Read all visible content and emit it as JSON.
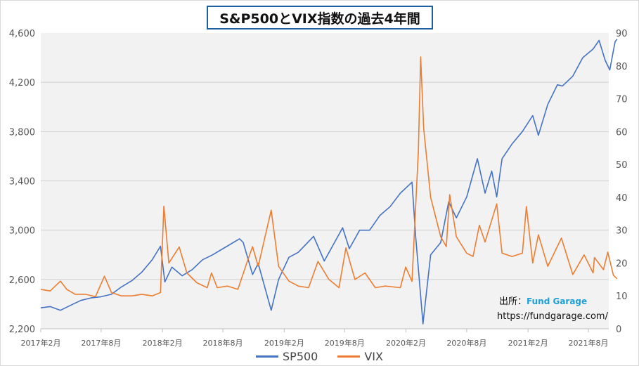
{
  "title": "S&P500とVIX指数の過去4年間",
  "source": {
    "label": "出所：",
    "brand": "Fund Garage",
    "url": "https://fundgarage.com/"
  },
  "colors": {
    "sp500": "#4472c4",
    "vix": "#ed7d31",
    "plot_bg": "#f2f2f2",
    "grid": "#d0d0d0"
  },
  "chart_data": {
    "type": "line",
    "title": "S&P500とVIX指数の過去4年間",
    "x_ticks": [
      "2017年2月",
      "2017年8月",
      "2018年2月",
      "2018年8月",
      "2019年2月",
      "2019年8月",
      "2020年2月",
      "2020年8月",
      "2021年2月",
      "2021年8月"
    ],
    "x_range": [
      "2017-02",
      "2021-10"
    ],
    "y_left": {
      "ticks": [
        "4,600",
        "4,200",
        "3,800",
        "3,400",
        "3,000",
        "2,600",
        "2,200"
      ],
      "range": [
        2200,
        4600
      ]
    },
    "y_right": {
      "ticks": [
        "90",
        "80",
        "70",
        "60",
        "50",
        "40",
        "30",
        "20",
        "10",
        "0"
      ],
      "range": [
        0,
        90
      ]
    },
    "grid": true,
    "legend_position": "bottom",
    "series": [
      {
        "name": "SP500",
        "axis": "left",
        "points": [
          [
            "2017-02-01",
            2370
          ],
          [
            "2017-03-01",
            2380
          ],
          [
            "2017-04-01",
            2350
          ],
          [
            "2017-05-01",
            2390
          ],
          [
            "2017-06-01",
            2430
          ],
          [
            "2017-07-01",
            2450
          ],
          [
            "2017-08-01",
            2460
          ],
          [
            "2017-09-01",
            2480
          ],
          [
            "2017-10-01",
            2540
          ],
          [
            "2017-11-01",
            2590
          ],
          [
            "2017-12-01",
            2660
          ],
          [
            "2018-01-01",
            2760
          ],
          [
            "2018-01-26",
            2870
          ],
          [
            "2018-02-08",
            2580
          ],
          [
            "2018-03-01",
            2700
          ],
          [
            "2018-04-01",
            2630
          ],
          [
            "2018-05-01",
            2680
          ],
          [
            "2018-06-01",
            2760
          ],
          [
            "2018-07-01",
            2800
          ],
          [
            "2018-08-01",
            2850
          ],
          [
            "2018-09-20",
            2930
          ],
          [
            "2018-10-01",
            2900
          ],
          [
            "2018-10-29",
            2640
          ],
          [
            "2018-11-15",
            2730
          ],
          [
            "2018-12-24",
            2350
          ],
          [
            "2019-01-15",
            2600
          ],
          [
            "2019-02-15",
            2780
          ],
          [
            "2019-03-15",
            2820
          ],
          [
            "2019-04-30",
            2950
          ],
          [
            "2019-06-01",
            2750
          ],
          [
            "2019-07-26",
            3020
          ],
          [
            "2019-08-15",
            2850
          ],
          [
            "2019-09-15",
            3000
          ],
          [
            "2019-10-15",
            3000
          ],
          [
            "2019-11-15",
            3120
          ],
          [
            "2019-12-15",
            3190
          ],
          [
            "2020-01-15",
            3300
          ],
          [
            "2020-02-19",
            3390
          ],
          [
            "2020-03-01",
            2950
          ],
          [
            "2020-03-23",
            2240
          ],
          [
            "2020-04-15",
            2800
          ],
          [
            "2020-05-15",
            2900
          ],
          [
            "2020-06-08",
            3230
          ],
          [
            "2020-07-01",
            3100
          ],
          [
            "2020-08-01",
            3270
          ],
          [
            "2020-09-02",
            3580
          ],
          [
            "2020-09-25",
            3300
          ],
          [
            "2020-10-15",
            3480
          ],
          [
            "2020-10-30",
            3270
          ],
          [
            "2020-11-15",
            3580
          ],
          [
            "2020-12-15",
            3700
          ],
          [
            "2021-01-15",
            3800
          ],
          [
            "2021-02-15",
            3930
          ],
          [
            "2021-03-04",
            3770
          ],
          [
            "2021-04-01",
            4020
          ],
          [
            "2021-04-30",
            4180
          ],
          [
            "2021-05-15",
            4170
          ],
          [
            "2021-06-15",
            4250
          ],
          [
            "2021-07-15",
            4400
          ],
          [
            "2021-08-15",
            4470
          ],
          [
            "2021-09-02",
            4540
          ],
          [
            "2021-09-20",
            4380
          ],
          [
            "2021-10-04",
            4300
          ],
          [
            "2021-10-20",
            4530
          ],
          [
            "2021-10-26",
            4550
          ]
        ]
      },
      {
        "name": "VIX",
        "axis": "right",
        "points": [
          [
            "2017-02-01",
            12
          ],
          [
            "2017-03-01",
            11.5
          ],
          [
            "2017-04-01",
            14.5
          ],
          [
            "2017-04-20",
            12
          ],
          [
            "2017-05-15",
            10.5
          ],
          [
            "2017-06-15",
            10.5
          ],
          [
            "2017-07-15",
            9.8
          ],
          [
            "2017-08-11",
            16
          ],
          [
            "2017-09-01",
            11
          ],
          [
            "2017-10-01",
            10
          ],
          [
            "2017-11-01",
            10
          ],
          [
            "2017-12-01",
            10.5
          ],
          [
            "2018-01-01",
            10
          ],
          [
            "2018-01-26",
            11
          ],
          [
            "2018-02-05",
            37.3
          ],
          [
            "2018-02-20",
            20
          ],
          [
            "2018-03-23",
            24.9
          ],
          [
            "2018-04-15",
            17
          ],
          [
            "2018-05-15",
            14
          ],
          [
            "2018-06-15",
            12.5
          ],
          [
            "2018-06-28",
            17
          ],
          [
            "2018-07-15",
            12.5
          ],
          [
            "2018-08-15",
            13
          ],
          [
            "2018-09-15",
            12
          ],
          [
            "2018-10-15",
            21
          ],
          [
            "2018-10-29",
            25
          ],
          [
            "2018-11-15",
            19
          ],
          [
            "2018-12-24",
            36.1
          ],
          [
            "2019-01-15",
            19
          ],
          [
            "2019-02-15",
            14.5
          ],
          [
            "2019-03-15",
            13
          ],
          [
            "2019-04-15",
            12.5
          ],
          [
            "2019-05-13",
            20.5
          ],
          [
            "2019-06-15",
            15
          ],
          [
            "2019-07-15",
            12.5
          ],
          [
            "2019-08-05",
            24.6
          ],
          [
            "2019-09-01",
            15
          ],
          [
            "2019-10-01",
            17
          ],
          [
            "2019-11-01",
            12.5
          ],
          [
            "2019-12-01",
            13
          ],
          [
            "2020-01-15",
            12.5
          ],
          [
            "2020-01-31",
            18.8
          ],
          [
            "2020-02-19",
            14.4
          ],
          [
            "2020-03-09",
            54
          ],
          [
            "2020-03-16",
            82.7
          ],
          [
            "2020-03-25",
            61
          ],
          [
            "2020-04-15",
            40
          ],
          [
            "2020-05-15",
            28
          ],
          [
            "2020-06-01",
            25
          ],
          [
            "2020-06-11",
            40.8
          ],
          [
            "2020-07-01",
            28
          ],
          [
            "2020-08-01",
            23
          ],
          [
            "2020-08-20",
            22
          ],
          [
            "2020-09-08",
            31.5
          ],
          [
            "2020-09-25",
            26.4
          ],
          [
            "2020-10-30",
            38
          ],
          [
            "2020-11-15",
            23
          ],
          [
            "2020-12-15",
            22
          ],
          [
            "2021-01-15",
            23
          ],
          [
            "2021-01-27",
            37.2
          ],
          [
            "2021-02-15",
            20
          ],
          [
            "2021-03-04",
            28.6
          ],
          [
            "2021-04-01",
            19
          ],
          [
            "2021-05-12",
            27.6
          ],
          [
            "2021-06-15",
            16.5
          ],
          [
            "2021-07-19",
            22.5
          ],
          [
            "2021-08-15",
            17
          ],
          [
            "2021-08-19",
            21.7
          ],
          [
            "2021-09-15",
            18
          ],
          [
            "2021-09-28",
            23.3
          ],
          [
            "2021-10-15",
            16.3
          ],
          [
            "2021-10-26",
            15.2
          ]
        ]
      }
    ]
  }
}
